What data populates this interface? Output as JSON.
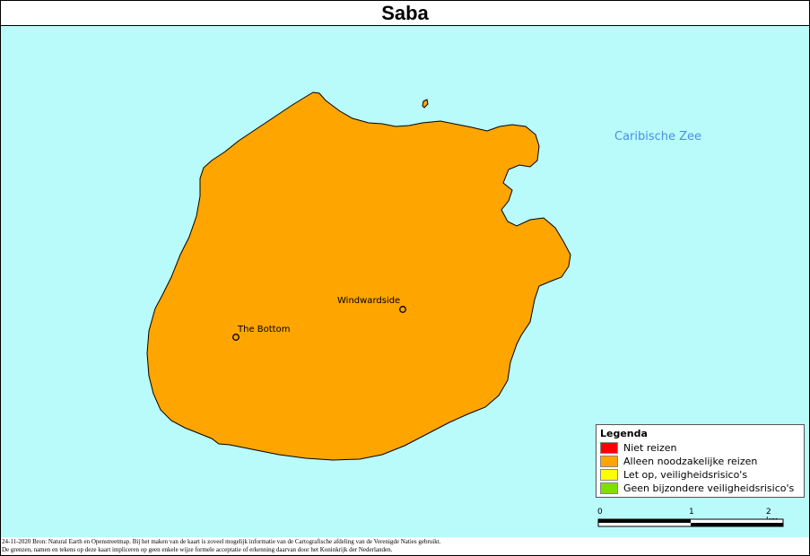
{
  "title": "Saba",
  "sea_label": "Caribische Zee",
  "places": [
    {
      "name": "Windwardside"
    },
    {
      "name": "The Bottom"
    }
  ],
  "legend": {
    "title": "Legenda",
    "items": [
      {
        "label": "Niet reizen",
        "color": "#ff0000"
      },
      {
        "label": "Alleen noodzakelijke reizen",
        "color": "#ffa500"
      },
      {
        "label": "Let op, veiligheidsrisico's",
        "color": "#ffff00"
      },
      {
        "label": "Geen bijzondere veiligheidsrisico's",
        "color": "#7fe000"
      }
    ]
  },
  "scalebar": {
    "labels": [
      "0",
      "1",
      "2 km"
    ]
  },
  "colors": {
    "sea": "#b9fafb",
    "island": "#ffa500"
  },
  "footer": {
    "line1": "24-11-2020 Bron: Natural Earth en Openstreetmap. Bij het maken van de kaart is zoveel mogelijk informatie van de Cartografische afdeling van de Verenigde Naties gebruikt.",
    "line2": "De grenzen, namen en tekens op deze kaart impliceren op geen enkele wijze formele acceptatie of erkenning daarvan door het Koninkrijk der Nederlanden."
  }
}
